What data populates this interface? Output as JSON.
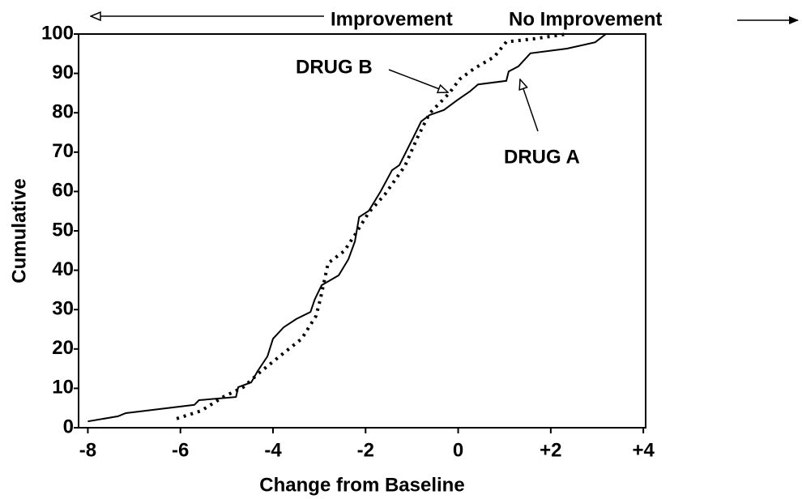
{
  "chart_data": {
    "type": "line",
    "xlabel": "Change from Baseline",
    "ylabel": "Cumulative",
    "xlim": [
      -8.2,
      4.05
    ],
    "ylim": [
      0,
      100
    ],
    "xticks": [
      -8,
      -6,
      -4,
      -2,
      0,
      {
        "value": 2,
        "label": "+2"
      },
      {
        "value": 4,
        "label": "+4"
      }
    ],
    "yticks": [
      0,
      10,
      20,
      30,
      40,
      50,
      60,
      70,
      80,
      90,
      100
    ],
    "annotations": [
      "Improvement",
      "No Improvement",
      "DRUG B",
      "DRUG A"
    ],
    "series": [
      {
        "name": "DRUG A",
        "color": "#000000",
        "x": [
          -8,
          -7.35,
          -7.18,
          -5.7,
          -5.6,
          -4.8,
          -4.75,
          -4.47,
          -4.33,
          -4.12,
          -4.0,
          -3.77,
          -3.5,
          -3.19,
          -3.1,
          -2.95,
          -2.58,
          -2.37,
          -2.23,
          -2.14,
          -1.93,
          -1.67,
          -1.43,
          -1.27,
          -0.97,
          -0.8,
          -0.62,
          -0.31,
          -0.01,
          0.25,
          0.43,
          1.04,
          1.09,
          1.3,
          1.56,
          2.35,
          2.96,
          3.19
        ],
        "values": [
          1.6,
          2.9,
          3.7,
          5.8,
          7,
          7.8,
          10.3,
          11.5,
          14.4,
          18.1,
          22.6,
          25.5,
          27.6,
          29.4,
          32.5,
          36.2,
          38.7,
          42.8,
          47.3,
          53.5,
          55.1,
          60.1,
          65.4,
          66.7,
          73.7,
          77.8,
          79.4,
          80.7,
          83.3,
          85.4,
          87.2,
          88.1,
          90.5,
          91.8,
          95.1,
          96.3,
          97.9,
          100
        ]
      },
      {
        "name": "DRUG B",
        "color": "#000000",
        "x": [
          -6.08,
          -5.55,
          -5.08,
          -4.64,
          -4.29,
          -3.86,
          -3.38,
          -3.07,
          -2.98,
          -2.81,
          -2.46,
          -2.23,
          -1.93,
          -1.58,
          -1.15,
          -0.88,
          -0.62,
          -0.19,
          0.03,
          0.34,
          0.78,
          1.04,
          1.65,
          2.35
        ],
        "values": [
          2.3,
          4.3,
          7.8,
          10.3,
          14,
          18.1,
          22.6,
          28.4,
          32.5,
          41.8,
          44.9,
          49,
          54.7,
          59.3,
          66.5,
          73.7,
          79.8,
          85,
          88.5,
          91.2,
          94.2,
          98,
          98.8,
          100
        ]
      }
    ]
  }
}
